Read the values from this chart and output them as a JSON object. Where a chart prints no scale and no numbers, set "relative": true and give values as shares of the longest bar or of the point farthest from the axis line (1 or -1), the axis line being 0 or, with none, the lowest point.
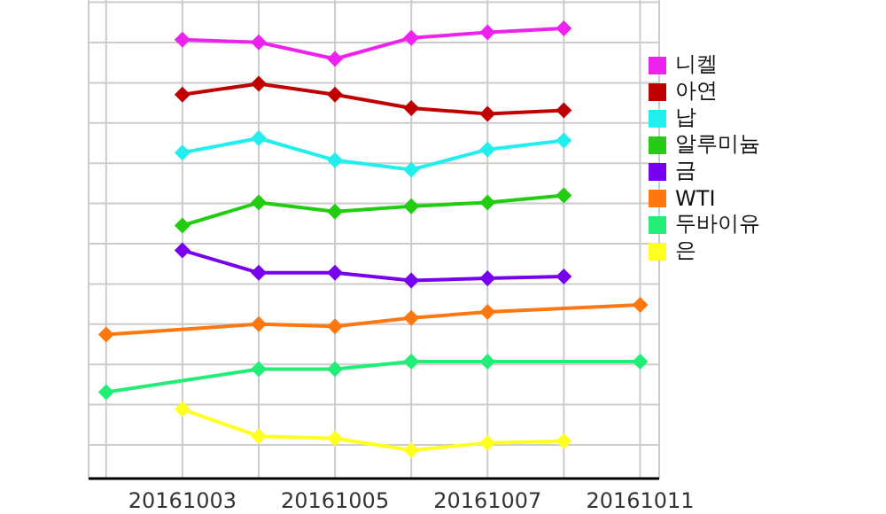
{
  "chart_data": {
    "type": "line",
    "relative": true,
    "categories": [
      null,
      "20161003",
      null,
      "20161005",
      null,
      "20161007",
      null,
      "20161011"
    ],
    "grid": true,
    "legend": "right",
    "marker": "diamond",
    "series": [
      {
        "name": "니켈",
        "color": "#ee22ee",
        "values": [
          null,
          0.975,
          0.969,
          0.932,
          0.979,
          0.991,
          1.0,
          null
        ]
      },
      {
        "name": "아연",
        "color": "#c00000",
        "values": [
          null,
          0.853,
          0.877,
          0.853,
          0.823,
          0.81,
          0.818,
          null
        ]
      },
      {
        "name": "납",
        "color": "#22eeee",
        "values": [
          null,
          0.724,
          0.756,
          0.707,
          0.686,
          0.731,
          0.751,
          null
        ]
      },
      {
        "name": "알루미늄",
        "color": "#22cc11",
        "values": [
          null,
          0.562,
          0.613,
          0.593,
          0.605,
          0.613,
          0.629,
          null
        ]
      },
      {
        "name": "금",
        "color": "#7700ee",
        "values": [
          null,
          0.507,
          0.457,
          0.457,
          0.44,
          0.445,
          0.449,
          null
        ]
      },
      {
        "name": "WTI",
        "color": "#ff7711",
        "values": [
          0.32,
          null,
          0.343,
          0.338,
          0.357,
          0.37,
          null,
          0.386
        ]
      },
      {
        "name": "두바이유",
        "color": "#22ee77",
        "values": [
          0.192,
          null,
          0.243,
          0.243,
          0.26,
          0.26,
          null,
          0.26
        ]
      },
      {
        "name": "은",
        "color": "#ffff22",
        "values": [
          null,
          0.154,
          0.094,
          0.089,
          0.063,
          0.079,
          0.083,
          null
        ]
      }
    ]
  }
}
